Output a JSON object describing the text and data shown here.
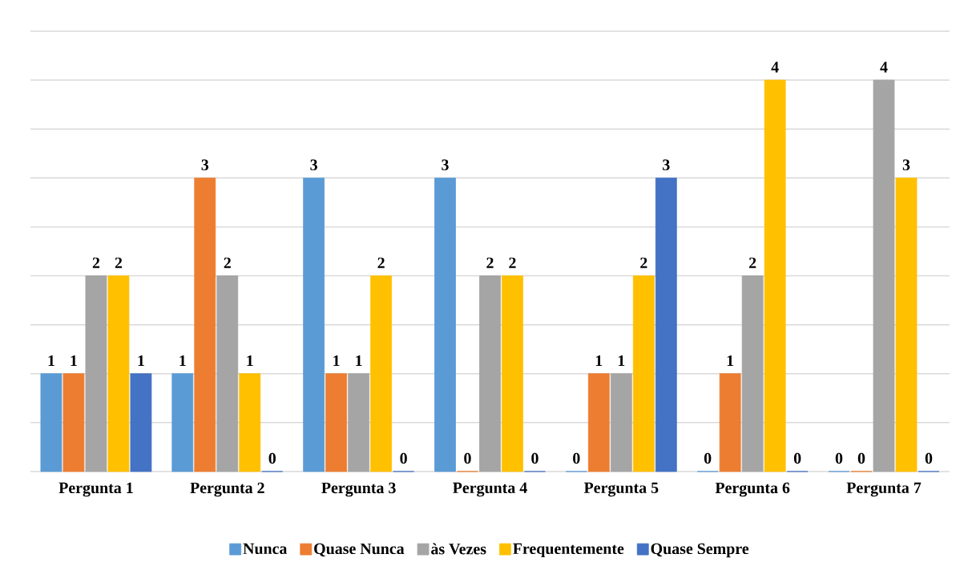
{
  "chart_data": {
    "type": "bar",
    "categories": [
      "Pergunta 1",
      "Pergunta 2",
      "Pergunta 3",
      "Pergunta 4",
      "Pergunta 5",
      "Pergunta 6",
      "Pergunta 7"
    ],
    "series": [
      {
        "name": "Nunca",
        "color": "#5b9bd5",
        "values": [
          1,
          1,
          3,
          3,
          0,
          0,
          0
        ]
      },
      {
        "name": "Quase Nunca",
        "color": "#ed7d31",
        "values": [
          1,
          3,
          1,
          0,
          1,
          1,
          0
        ]
      },
      {
        "name": "às Vezes",
        "color": "#a5a5a5",
        "values": [
          2,
          2,
          1,
          2,
          1,
          2,
          4
        ]
      },
      {
        "name": "Frequentemente",
        "color": "#ffc000",
        "values": [
          2,
          1,
          2,
          2,
          2,
          4,
          3
        ]
      },
      {
        "name": "Quase Sempre",
        "color": "#4472c4",
        "values": [
          1,
          0,
          0,
          0,
          3,
          0,
          0
        ]
      }
    ],
    "ylim": [
      0,
      4.5
    ],
    "yticks": [
      {
        "value": 0,
        "label": null
      },
      {
        "value": 0.5,
        "label": null
      },
      {
        "value": 1,
        "label": null
      },
      {
        "value": 1.5,
        "label": null
      },
      {
        "value": 2,
        "label": null
      },
      {
        "value": 2.5,
        "label": null
      },
      {
        "value": 3,
        "label": null
      },
      {
        "value": 3.5,
        "label": null
      },
      {
        "value": 4,
        "label": null
      },
      {
        "value": 4.5,
        "label": null
      }
    ],
    "tick_labels": "x",
    "grid": "y",
    "legend": "bottom",
    "data_labels": true
  }
}
